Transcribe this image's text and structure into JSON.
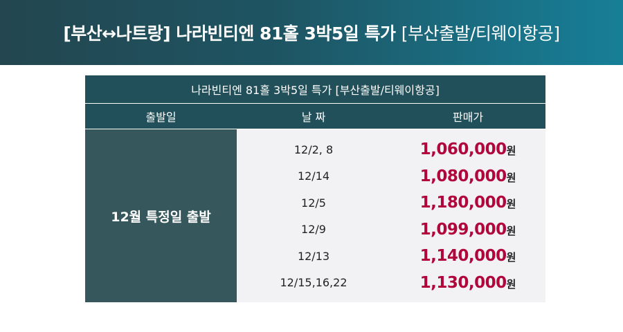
{
  "banner": {
    "title_main": "[부산↔나트랑] 나라빈티엔 81홀 3박5일 특가",
    "title_sub": "[부산출발/티웨이항공]"
  },
  "table": {
    "caption": "나라빈티엔 81홀 3박5일 특가 [부산출발/티웨이항공]",
    "headers": [
      "출발일",
      "날 짜",
      "판매가"
    ],
    "group_label": "12월 특정일 출발",
    "currency_unit": "원",
    "rows": [
      {
        "date": "12/2, 8",
        "price": "1,060,000"
      },
      {
        "date": "12/14",
        "price": "1,080,000"
      },
      {
        "date": "12/5",
        "price": "1,180,000"
      },
      {
        "date": "12/9",
        "price": "1,099,000"
      },
      {
        "date": "12/13",
        "price": "1,140,000"
      },
      {
        "date": "12/15,16,22",
        "price": "1,130,000"
      }
    ]
  },
  "colors": {
    "banner_start": "#23464f",
    "banner_end": "#177f98",
    "header_bg": "#21505a",
    "group_bg": "#36575c",
    "price": "#b0063c",
    "rows_bg": "#f2f2f5"
  }
}
